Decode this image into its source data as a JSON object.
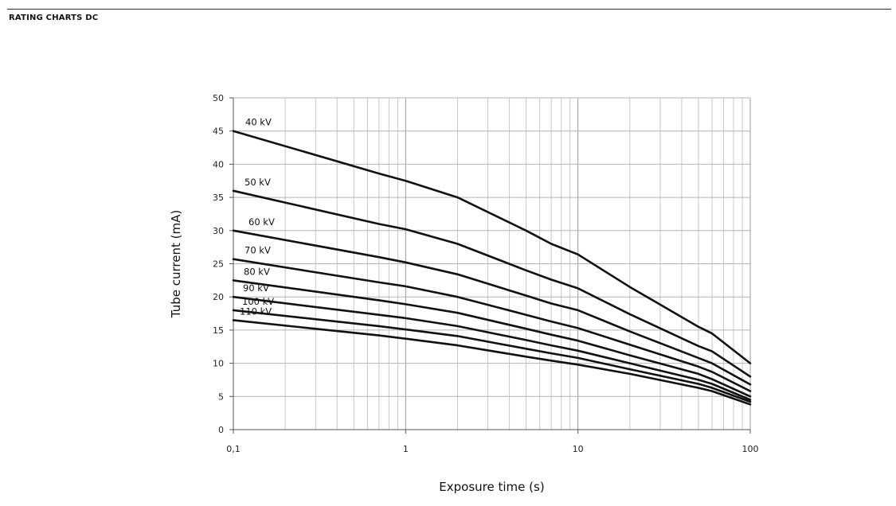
{
  "header": {
    "title": "RATING CHARTS DC"
  },
  "chart_data": {
    "type": "line",
    "title": "",
    "xlabel": "Exposure time (s)",
    "ylabel": "Tube current (mA)",
    "xscale": "log",
    "xlim": [
      0.1,
      100
    ],
    "ylim": [
      0,
      50
    ],
    "xticks": [
      0.1,
      1,
      10,
      100
    ],
    "xtick_labels": [
      "0,1",
      "1",
      "10",
      "100"
    ],
    "yticks": [
      0,
      5,
      10,
      15,
      20,
      25,
      30,
      35,
      40,
      45,
      50
    ],
    "ytick_labels": [
      "0",
      "5",
      "10",
      "15",
      "20",
      "25",
      "30",
      "35",
      "40",
      "45",
      "50"
    ],
    "grid": true,
    "legend": "inline labels at left end of each curve",
    "line_color": "#111111",
    "x": [
      0.1,
      0.7,
      1,
      2,
      5,
      7,
      10,
      20,
      50,
      60,
      100
    ],
    "series": [
      {
        "name": "40 kV",
        "values": [
          45,
          38.6,
          37.5,
          35,
          30,
          28,
          26.4,
          21.5,
          15.5,
          14.5,
          10
        ]
      },
      {
        "name": "50 kV",
        "values": [
          36,
          31,
          30.2,
          28,
          24,
          22.6,
          21.3,
          17.4,
          12.6,
          11.8,
          8
        ]
      },
      {
        "name": "60 kV",
        "values": [
          30,
          26,
          25.2,
          23.4,
          20.2,
          19,
          18,
          14.8,
          10.8,
          10,
          6.8
        ]
      },
      {
        "name": "70 kV",
        "values": [
          25.7,
          22.2,
          21.6,
          20,
          17.3,
          16.3,
          15.3,
          12.8,
          9.5,
          8.7,
          5.8
        ]
      },
      {
        "name": "80 kV",
        "values": [
          22.5,
          19.5,
          18.9,
          17.6,
          15.2,
          14.3,
          13.4,
          11.2,
          8.4,
          7.6,
          5
        ]
      },
      {
        "name": "90 kV",
        "values": [
          20,
          17.3,
          16.8,
          15.6,
          13.5,
          12.7,
          11.9,
          10,
          7.5,
          6.9,
          4.5
        ]
      },
      {
        "name": "100 kV",
        "values": [
          18,
          15.6,
          15.1,
          14.1,
          12.2,
          11.5,
          10.8,
          9.1,
          6.9,
          6.3,
          4.2
        ]
      },
      {
        "name": "110 kV",
        "values": [
          16.5,
          14.2,
          13.7,
          12.7,
          11,
          10.4,
          9.8,
          8.4,
          6.3,
          5.8,
          3.8
        ]
      }
    ]
  }
}
